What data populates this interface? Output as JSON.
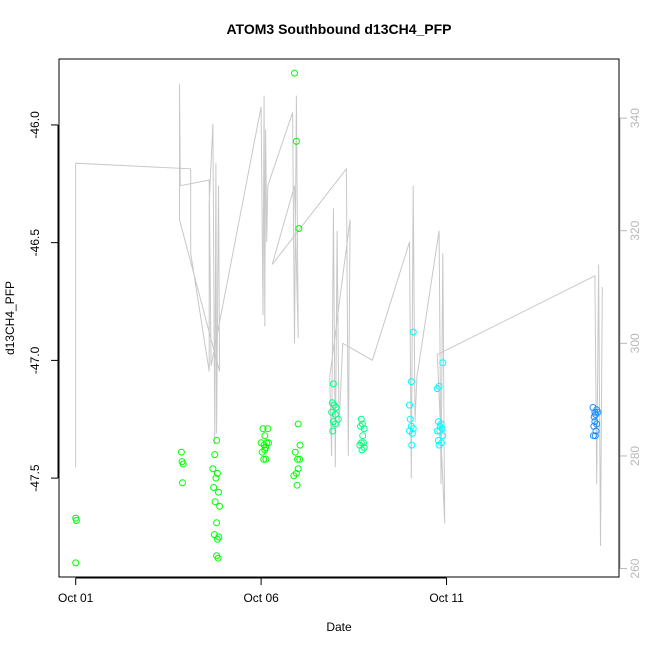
{
  "chart_data": {
    "type": "scatter",
    "title": "ATOM3 Southbound d13CH4_PFP",
    "xlabel": "Date",
    "ylabel": "d13CH4_PFP",
    "x_ticks": [
      "Oct 01",
      "Oct 06",
      "Oct 11"
    ],
    "x_tick_values": [
      1,
      6,
      11
    ],
    "xlim": [
      0.55,
      15.65
    ],
    "ylim": [
      -47.92,
      -45.72
    ],
    "y_ticks": [
      -47.5,
      -47.0,
      -46.5,
      -46.0
    ],
    "y_tick_labels": [
      "-47.5",
      "-47.0",
      "-46.5",
      "-46.0"
    ],
    "y2_ticks": [
      260,
      280,
      300,
      320,
      340
    ],
    "y2lim": [
      258.5,
      350.5
    ],
    "grid": false,
    "series": [
      {
        "kind": "points",
        "color": "#00ff00",
        "points": [
          [
            1.0,
            -47.67
          ],
          [
            1.02,
            -47.68
          ],
          [
            1.0,
            -47.86
          ],
          [
            3.85,
            -47.39
          ],
          [
            3.87,
            -47.43
          ],
          [
            3.9,
            -47.44
          ],
          [
            3.88,
            -47.52
          ],
          [
            4.7,
            -47.46
          ],
          [
            4.75,
            -47.4
          ],
          [
            4.8,
            -47.34
          ],
          [
            4.72,
            -47.54
          ],
          [
            4.78,
            -47.5
          ],
          [
            4.82,
            -47.48
          ],
          [
            4.85,
            -47.56
          ],
          [
            4.76,
            -47.6
          ],
          [
            4.88,
            -47.62
          ],
          [
            4.8,
            -47.69
          ],
          [
            4.74,
            -47.74
          ],
          [
            4.82,
            -47.76
          ],
          [
            4.86,
            -47.75
          ],
          [
            4.8,
            -47.83
          ],
          [
            4.84,
            -47.84
          ],
          [
            6.05,
            -47.29
          ],
          [
            6.1,
            -47.32
          ],
          [
            6.0,
            -47.35
          ],
          [
            6.08,
            -47.36
          ],
          [
            6.12,
            -47.37
          ],
          [
            6.03,
            -47.39
          ],
          [
            6.1,
            -47.38
          ],
          [
            6.15,
            -47.35
          ],
          [
            6.07,
            -47.42
          ],
          [
            6.13,
            -47.42
          ],
          [
            6.18,
            -47.29
          ],
          [
            6.2,
            -47.35
          ],
          [
            6.9,
            -45.78
          ],
          [
            6.95,
            -46.07
          ],
          [
            7.02,
            -46.44
          ],
          [
            7.0,
            -47.27
          ],
          [
            7.05,
            -47.36
          ],
          [
            6.92,
            -47.39
          ],
          [
            6.98,
            -47.42
          ],
          [
            7.04,
            -47.42
          ],
          [
            6.95,
            -47.48
          ],
          [
            7.0,
            -47.46
          ],
          [
            6.88,
            -47.49
          ],
          [
            6.97,
            -47.53
          ]
        ]
      },
      {
        "kind": "points",
        "color": "#00ff7f",
        "points": [
          [
            7.95,
            -47.1
          ],
          [
            7.92,
            -47.18
          ],
          [
            7.97,
            -47.19
          ],
          [
            8.02,
            -47.2
          ],
          [
            7.9,
            -47.22
          ],
          [
            8.0,
            -47.23
          ],
          [
            7.95,
            -47.26
          ],
          [
            8.08,
            -47.25
          ],
          [
            8.0,
            -47.27
          ],
          [
            7.93,
            -47.3
          ],
          [
            8.7,
            -47.25
          ],
          [
            8.73,
            -47.27
          ],
          [
            8.68,
            -47.28
          ],
          [
            8.78,
            -47.29
          ],
          [
            8.74,
            -47.32
          ],
          [
            8.7,
            -47.35
          ],
          [
            8.76,
            -47.35
          ],
          [
            8.66,
            -47.36
          ],
          [
            8.72,
            -47.38
          ],
          [
            8.78,
            -47.37
          ]
        ]
      },
      {
        "kind": "points",
        "color": "#00ffff",
        "points": [
          [
            10.0,
            -47.19
          ],
          [
            10.05,
            -47.09
          ],
          [
            10.1,
            -46.88
          ],
          [
            10.02,
            -47.25
          ],
          [
            10.05,
            -47.28
          ],
          [
            10.1,
            -47.29
          ],
          [
            10.0,
            -47.3
          ],
          [
            10.08,
            -47.31
          ],
          [
            10.06,
            -47.36
          ],
          [
            10.75,
            -47.12
          ],
          [
            10.8,
            -47.11
          ],
          [
            10.9,
            -47.01
          ],
          [
            10.78,
            -47.26
          ],
          [
            10.85,
            -47.27
          ],
          [
            10.88,
            -47.29
          ],
          [
            10.75,
            -47.3
          ],
          [
            10.82,
            -47.3
          ],
          [
            10.9,
            -47.32
          ],
          [
            10.78,
            -47.34
          ],
          [
            10.86,
            -47.35
          ],
          [
            10.8,
            -47.36
          ],
          [
            10.83,
            -47.28
          ]
        ]
      },
      {
        "kind": "points",
        "color": "#1e90ff",
        "points": [
          [
            14.95,
            -47.2
          ],
          [
            15.0,
            -47.22
          ],
          [
            15.05,
            -47.21
          ],
          [
            14.98,
            -47.24
          ],
          [
            15.02,
            -47.23
          ],
          [
            15.08,
            -47.22
          ],
          [
            15.0,
            -47.26
          ],
          [
            15.05,
            -47.27
          ],
          [
            14.97,
            -47.28
          ],
          [
            15.03,
            -47.3
          ],
          [
            14.96,
            -47.32
          ],
          [
            15.01,
            -47.32
          ]
        ]
      },
      {
        "kind": "line",
        "axis": "right",
        "color": "#c8c8c8",
        "points": [
          [
            1.0,
            278
          ],
          [
            1.0,
            332
          ],
          [
            4.1,
            331
          ],
          [
            4.1,
            316
          ],
          [
            4.6,
            295
          ],
          [
            4.6,
            325
          ],
          [
            4.7,
            339
          ],
          [
            4.75,
            282
          ],
          [
            4.78,
            332
          ],
          [
            4.8,
            284
          ],
          [
            4.85,
            328
          ],
          [
            4.88,
            295
          ],
          [
            3.8,
            322
          ],
          [
            3.8,
            346
          ],
          [
            3.82,
            328
          ],
          [
            4.6,
            329
          ],
          [
            4.65,
            296
          ],
          [
            6.0,
            342
          ],
          [
            6.05,
            305
          ],
          [
            6.08,
            344
          ],
          [
            6.1,
            303
          ],
          [
            6.12,
            338
          ],
          [
            6.15,
            318
          ],
          [
            6.18,
            328
          ],
          [
            6.85,
            341
          ],
          [
            6.9,
            300
          ],
          [
            6.95,
            344
          ],
          [
            7.0,
            301
          ],
          [
            6.9,
            328
          ],
          [
            6.3,
            314
          ],
          [
            8.3,
            331
          ],
          [
            8.35,
            280
          ],
          [
            8.4,
            322
          ],
          [
            7.85,
            294
          ],
          [
            7.9,
            280
          ],
          [
            7.95,
            324
          ],
          [
            8.0,
            278
          ],
          [
            8.05,
            320
          ],
          [
            8.1,
            285
          ],
          [
            8.2,
            300
          ],
          [
            9.0,
            297
          ],
          [
            10.0,
            318
          ],
          [
            10.05,
            276
          ],
          [
            10.1,
            328
          ],
          [
            10.15,
            286
          ],
          [
            10.2,
            294
          ],
          [
            10.8,
            320
          ],
          [
            10.85,
            275
          ],
          [
            10.9,
            316
          ],
          [
            10.95,
            268
          ],
          [
            10.75,
            298
          ],
          [
            15.0,
            312
          ],
          [
            15.05,
            275
          ],
          [
            15.1,
            314
          ],
          [
            15.15,
            264
          ],
          [
            15.2,
            310
          ]
        ]
      }
    ]
  }
}
